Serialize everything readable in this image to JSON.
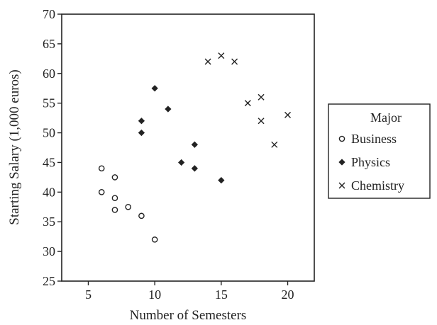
{
  "chart_data": {
    "type": "scatter",
    "title": "",
    "xlabel": "Number of Semesters",
    "ylabel": "Starting Salary (1,000 euros)",
    "xlim": [
      3,
      22
    ],
    "ylim": [
      25,
      70
    ],
    "xticks": [
      5,
      10,
      15,
      20
    ],
    "yticks": [
      25,
      30,
      35,
      40,
      45,
      50,
      55,
      60,
      65,
      70
    ],
    "grid": false,
    "legend": {
      "title": "Major",
      "placement": "right"
    },
    "series": [
      {
        "name": "Business",
        "marker": "circle",
        "points": [
          {
            "x": 6,
            "y": 44
          },
          {
            "x": 6,
            "y": 40
          },
          {
            "x": 7,
            "y": 42.5
          },
          {
            "x": 7,
            "y": 39
          },
          {
            "x": 7,
            "y": 37
          },
          {
            "x": 8,
            "y": 37.5
          },
          {
            "x": 9,
            "y": 36
          },
          {
            "x": 10,
            "y": 32
          }
        ]
      },
      {
        "name": "Physics",
        "marker": "diamond",
        "points": [
          {
            "x": 9,
            "y": 52
          },
          {
            "x": 9,
            "y": 50
          },
          {
            "x": 10,
            "y": 57.5
          },
          {
            "x": 11,
            "y": 54
          },
          {
            "x": 12,
            "y": 45
          },
          {
            "x": 13,
            "y": 48
          },
          {
            "x": 13,
            "y": 44
          },
          {
            "x": 15,
            "y": 42
          }
        ]
      },
      {
        "name": "Chemistry",
        "marker": "cross",
        "points": [
          {
            "x": 14,
            "y": 62
          },
          {
            "x": 15,
            "y": 63
          },
          {
            "x": 16,
            "y": 62
          },
          {
            "x": 17,
            "y": 55
          },
          {
            "x": 18,
            "y": 56
          },
          {
            "x": 18,
            "y": 52
          },
          {
            "x": 19,
            "y": 48
          },
          {
            "x": 20,
            "y": 53
          }
        ]
      }
    ],
    "colors": {
      "ink": "#222222",
      "background": "#ffffff"
    }
  }
}
